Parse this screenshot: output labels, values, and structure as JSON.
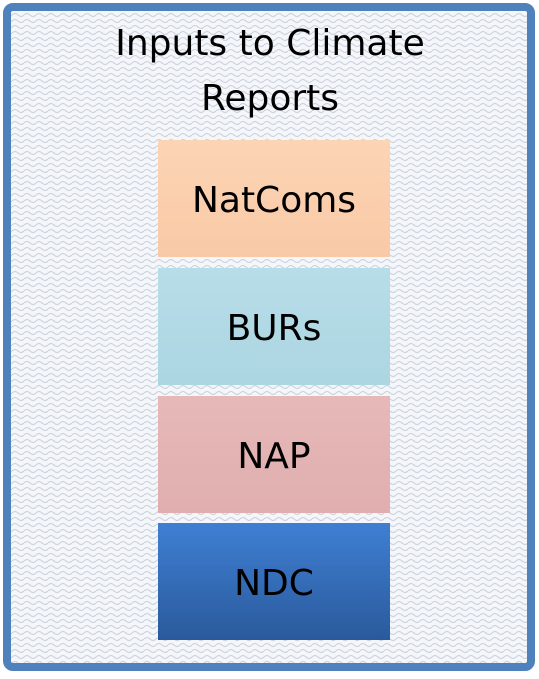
{
  "title": "Inputs to Climate Reports",
  "nodes": [
    {
      "label": "NatComs"
    },
    {
      "label": "BURs"
    },
    {
      "label": "NAP"
    },
    {
      "label": "NDC"
    }
  ]
}
